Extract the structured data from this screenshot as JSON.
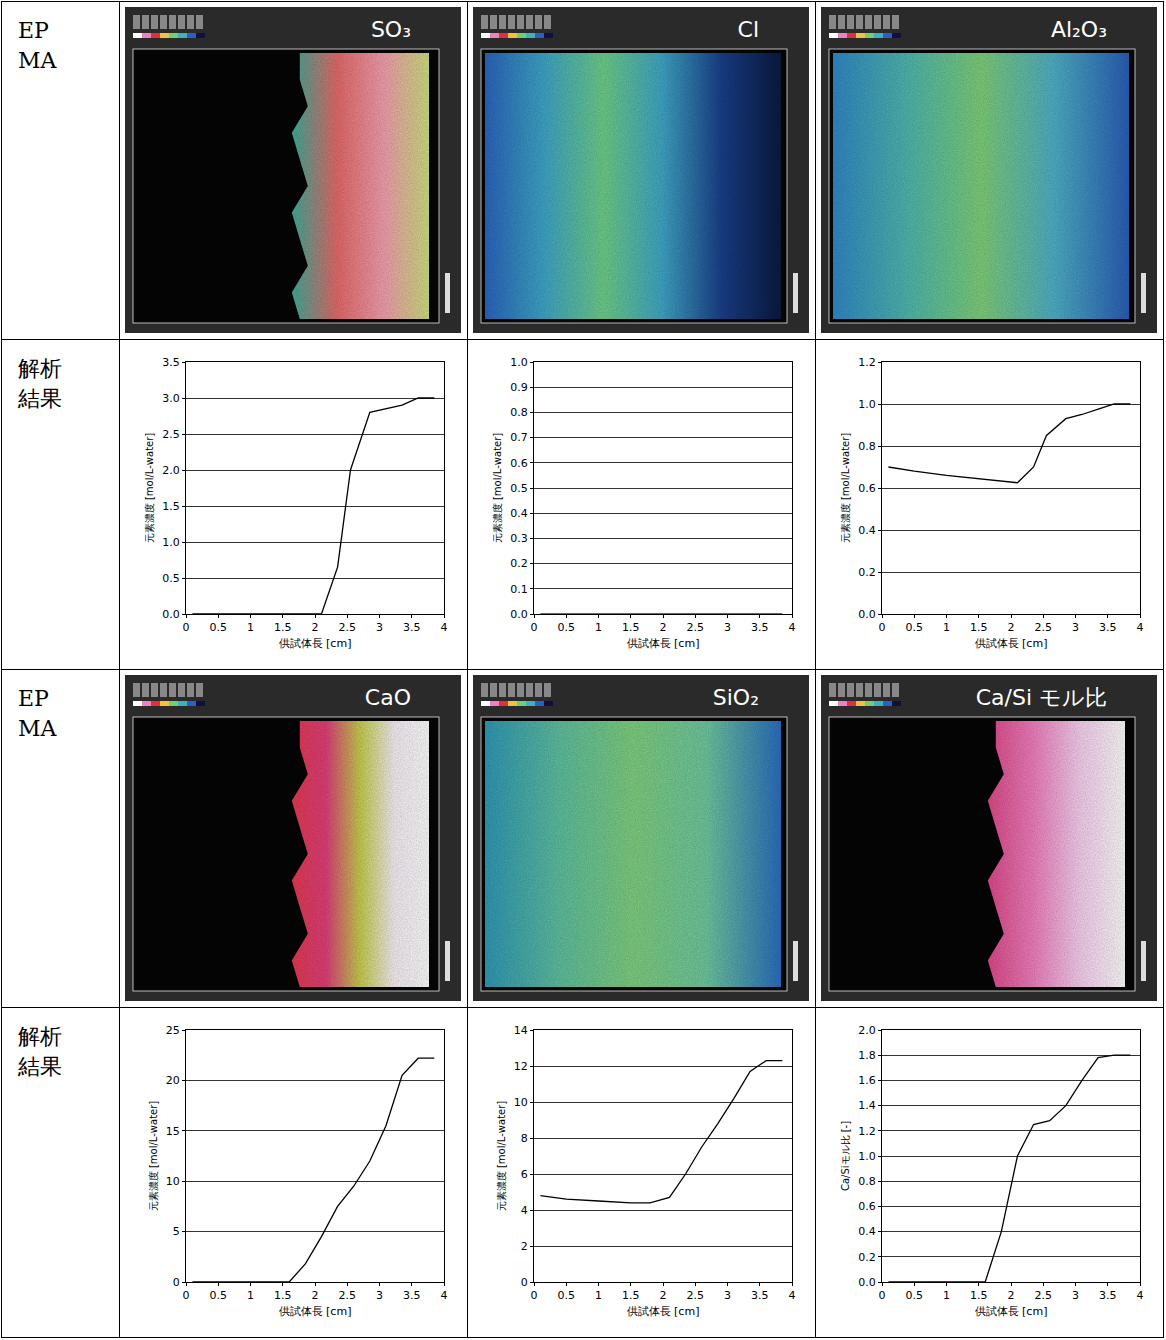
{
  "row_labels": [
    "EPMA",
    "解析結果"
  ],
  "epma_titles": [
    "SO₃",
    "Cl",
    "Al₂O₃",
    "CaO",
    "SiO₂",
    "Ca/Si モル比"
  ],
  "chart_data": [
    {
      "type": "line",
      "xlabel": "供試体長 [cm]",
      "ylabel": "元素濃度 [mol/L-water]",
      "x": [
        0.1,
        2.1,
        2.35,
        2.55,
        2.85,
        3.1,
        3.35,
        3.6,
        3.85
      ],
      "values": [
        0,
        0,
        0.65,
        2.0,
        2.8,
        2.85,
        2.9,
        3.0,
        3.0
      ],
      "color": "#000000",
      "xlim": [
        0,
        4
      ],
      "xticks": [
        0,
        0.5,
        1,
        1.5,
        2,
        2.5,
        3,
        3.5,
        4
      ],
      "ylim": [
        0,
        3.5
      ],
      "yticks": [
        {
          "value": 0,
          "label": "0.0"
        },
        {
          "value": 0.5,
          "label": "0.5"
        },
        {
          "value": 1,
          "label": "1.0"
        },
        {
          "value": 1.5,
          "label": "1.5"
        },
        {
          "value": 2,
          "label": "2.0"
        },
        {
          "value": 2.5,
          "label": "2.5"
        },
        {
          "value": 3,
          "label": "3.0"
        },
        {
          "value": 3.5,
          "label": "3.5"
        }
      ],
      "grid": true
    },
    {
      "type": "line",
      "xlabel": "供試体長 [cm]",
      "ylabel": "元素濃度 [mol/L-water]",
      "x": [
        0.1,
        3.85
      ],
      "values": [
        0,
        0
      ],
      "color": "#1f2a8a",
      "xlim": [
        0,
        4
      ],
      "xticks": [
        0,
        0.5,
        1,
        1.5,
        2,
        2.5,
        3,
        3.5,
        4
      ],
      "ylim": [
        0,
        1
      ],
      "yticks": [
        {
          "value": 0,
          "label": "0.0"
        },
        {
          "value": 0.1,
          "label": "0.1"
        },
        {
          "value": 0.2,
          "label": "0.2"
        },
        {
          "value": 0.3,
          "label": "0.3"
        },
        {
          "value": 0.4,
          "label": "0.4"
        },
        {
          "value": 0.5,
          "label": "0.5"
        },
        {
          "value": 0.6,
          "label": "0.6"
        },
        {
          "value": 0.7,
          "label": "0.7"
        },
        {
          "value": 0.8,
          "label": "0.8"
        },
        {
          "value": 0.9,
          "label": "0.9"
        },
        {
          "value": 1,
          "label": "1.0"
        }
      ],
      "grid": true
    },
    {
      "type": "line",
      "xlabel": "供試体長 [cm]",
      "ylabel": "元素濃度 [mol/L-water]",
      "x": [
        0.1,
        0.5,
        1.0,
        1.5,
        2.1,
        2.35,
        2.55,
        2.85,
        3.1,
        3.4,
        3.6,
        3.85
      ],
      "values": [
        0.7,
        0.68,
        0.66,
        0.645,
        0.625,
        0.7,
        0.85,
        0.93,
        0.95,
        0.98,
        1.0,
        1.0
      ],
      "color": "#000000",
      "xlim": [
        0,
        4
      ],
      "xticks": [
        0,
        0.5,
        1,
        1.5,
        2,
        2.5,
        3,
        3.5,
        4
      ],
      "ylim": [
        0,
        1.2
      ],
      "yticks": [
        {
          "value": 0,
          "label": "0.0"
        },
        {
          "value": 0.2,
          "label": "0.2"
        },
        {
          "value": 0.4,
          "label": "0.4"
        },
        {
          "value": 0.6,
          "label": "0.6"
        },
        {
          "value": 0.8,
          "label": "0.8"
        },
        {
          "value": 1,
          "label": "1.0"
        },
        {
          "value": 1.2,
          "label": "1.2"
        }
      ],
      "grid": true
    },
    {
      "type": "line",
      "xlabel": "供試体長 [cm]",
      "ylabel": "元素濃度 [mol/L-water]",
      "x": [
        0.1,
        1.6,
        1.85,
        2.1,
        2.35,
        2.6,
        2.85,
        3.1,
        3.35,
        3.6,
        3.85
      ],
      "values": [
        0,
        0,
        1.8,
        4.5,
        7.5,
        9.5,
        12,
        15.5,
        20.5,
        22.2,
        22.2
      ],
      "color": "#000000",
      "xlim": [
        0,
        4
      ],
      "xticks": [
        0,
        0.5,
        1,
        1.5,
        2,
        2.5,
        3,
        3.5,
        4
      ],
      "ylim": [
        0,
        25
      ],
      "yticks": [
        0,
        5,
        10,
        15,
        20,
        25
      ],
      "grid": true
    },
    {
      "type": "line",
      "xlabel": "供試体長 [cm]",
      "ylabel": "元素濃度 [mol/L-water]",
      "x": [
        0.1,
        0.5,
        1.0,
        1.5,
        1.8,
        2.1,
        2.35,
        2.6,
        2.85,
        3.1,
        3.35,
        3.6,
        3.85
      ],
      "values": [
        4.8,
        4.6,
        4.5,
        4.4,
        4.4,
        4.7,
        6.0,
        7.5,
        8.8,
        10.2,
        11.7,
        12.3,
        12.3
      ],
      "color": "#000000",
      "xlim": [
        0,
        4
      ],
      "xticks": [
        0,
        0.5,
        1,
        1.5,
        2,
        2.5,
        3,
        3.5,
        4
      ],
      "ylim": [
        0,
        14
      ],
      "yticks": [
        0,
        2,
        4,
        6,
        8,
        10,
        12,
        14
      ],
      "grid": true
    },
    {
      "type": "line",
      "xlabel": "供試体長 [cm]",
      "ylabel": "Ca/Siモル比 [-]",
      "x": [
        0.1,
        1.6,
        1.85,
        2.1,
        2.35,
        2.6,
        2.85,
        3.1,
        3.35,
        3.6,
        3.85
      ],
      "values": [
        0,
        0,
        0.4,
        1.0,
        1.25,
        1.28,
        1.4,
        1.6,
        1.78,
        1.8,
        1.8
      ],
      "color": "#000000",
      "xlim": [
        0,
        4
      ],
      "xticks": [
        0,
        0.5,
        1,
        1.5,
        2,
        2.5,
        3,
        3.5,
        4
      ],
      "ylim": [
        0,
        2
      ],
      "yticks": [
        {
          "value": 0,
          "label": "0.0"
        },
        {
          "value": 0.2,
          "label": "0.2"
        },
        {
          "value": 0.4,
          "label": "0.4"
        },
        {
          "value": 0.6,
          "label": "0.6"
        },
        {
          "value": 0.8,
          "label": "0.8"
        },
        {
          "value": 1,
          "label": "1.0"
        },
        {
          "value": 1.2,
          "label": "1.2"
        },
        {
          "value": 1.4,
          "label": "1.4"
        },
        {
          "value": 1.6,
          "label": "1.6"
        },
        {
          "value": 1.8,
          "label": "1.8"
        },
        {
          "value": 2,
          "label": "2.0"
        }
      ],
      "grid": true
    }
  ]
}
